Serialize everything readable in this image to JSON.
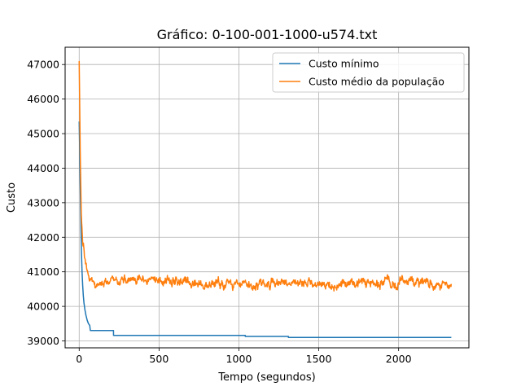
{
  "chart_data": {
    "type": "line",
    "title": "Gráfico: 0-100-001-1000-u574.txt",
    "xlabel": "Tempo (segundos)",
    "ylabel": "Custo",
    "xlim": [
      -88,
      2440
    ],
    "ylim": [
      38800,
      47500
    ],
    "xticks": [
      0,
      500,
      1000,
      1500,
      2000
    ],
    "yticks": [
      39000,
      40000,
      41000,
      42000,
      43000,
      44000,
      45000,
      46000,
      47000
    ],
    "grid": true,
    "legend_position": "top-right",
    "series": [
      {
        "name": "Custo mínimo",
        "color": "#1f77b4",
        "points": [
          [
            0,
            45350
          ],
          [
            3,
            44600
          ],
          [
            6,
            43600
          ],
          [
            10,
            42600
          ],
          [
            14,
            41600
          ],
          [
            18,
            41000
          ],
          [
            22,
            40600
          ],
          [
            26,
            40300
          ],
          [
            30,
            40100
          ],
          [
            36,
            39900
          ],
          [
            42,
            39750
          ],
          [
            50,
            39600
          ],
          [
            58,
            39500
          ],
          [
            66,
            39450
          ],
          [
            70,
            39300
          ],
          [
            140,
            39300
          ],
          [
            215,
            39300
          ],
          [
            215,
            39160
          ],
          [
            600,
            39160
          ],
          [
            1040,
            39160
          ],
          [
            1040,
            39130
          ],
          [
            1310,
            39130
          ],
          [
            1310,
            39100
          ],
          [
            2330,
            39100
          ]
        ]
      },
      {
        "name": "Custo médio da população",
        "color": "#ff7f0e",
        "mean_points": [
          [
            0,
            47200
          ],
          [
            4,
            45500
          ],
          [
            8,
            44000
          ],
          [
            12,
            43000
          ],
          [
            16,
            42300
          ],
          [
            22,
            41900
          ],
          [
            30,
            41600
          ],
          [
            40,
            41300
          ],
          [
            55,
            41000
          ],
          [
            70,
            40750
          ],
          [
            100,
            40650
          ],
          [
            150,
            40720
          ],
          [
            200,
            40780
          ],
          [
            300,
            40750
          ],
          [
            400,
            40760
          ],
          [
            500,
            40740
          ],
          [
            600,
            40720
          ],
          [
            700,
            40690
          ],
          [
            800,
            40660
          ],
          [
            900,
            40680
          ],
          [
            1000,
            40690
          ],
          [
            1100,
            40650
          ],
          [
            1200,
            40670
          ],
          [
            1300,
            40660
          ],
          [
            1400,
            40670
          ],
          [
            1500,
            40660
          ],
          [
            1600,
            40660
          ],
          [
            1700,
            40640
          ],
          [
            1800,
            40660
          ],
          [
            1900,
            40690
          ],
          [
            2000,
            40700
          ],
          [
            2100,
            40710
          ],
          [
            2200,
            40700
          ],
          [
            2250,
            40660
          ],
          [
            2300,
            40520
          ],
          [
            2330,
            40480
          ]
        ],
        "noise_amplitude": 170
      }
    ]
  }
}
